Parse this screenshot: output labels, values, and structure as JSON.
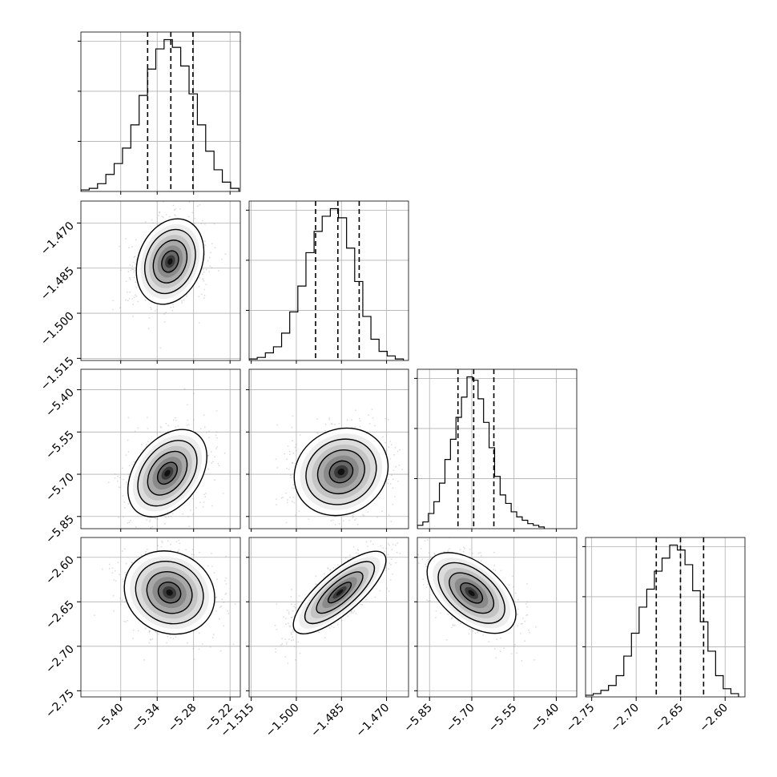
{
  "chart_data": {
    "type": "corner",
    "description_source": "posterior corner plot with 4 parameters",
    "grid": true,
    "parameters": [
      {
        "label": "",
        "ticks": [
          "−5.40",
          "−5.34",
          "−5.28",
          "−5.22"
        ],
        "tick_values": [
          -5.4,
          -5.34,
          -5.28,
          -5.22
        ],
        "range": [
          -5.4656,
          -5.2031
        ],
        "quantiles": [
          -5.3557,
          -5.3175,
          -5.2811
        ],
        "hist": {
          "bins": [
            -5.4656,
            -5.4519,
            -5.4382,
            -5.4245,
            -5.4108,
            -5.3971,
            -5.3834,
            -5.3697,
            -5.356,
            -5.3423,
            -5.3286,
            -5.3149,
            -5.3012,
            -5.2875,
            -5.2738,
            -5.2601,
            -5.2464,
            -5.2327,
            -5.219,
            -5.2053
          ],
          "counts": [
            0.01,
            0.02,
            0.05,
            0.11,
            0.18,
            0.28,
            0.43,
            0.62,
            0.79,
            0.92,
            0.98,
            0.93,
            0.81,
            0.63,
            0.43,
            0.26,
            0.14,
            0.06,
            0.02
          ]
        }
      },
      {
        "label": "",
        "ticks": [
          "−1.515",
          "−1.500",
          "−1.485",
          "−1.470"
        ],
        "tick_values": [
          -1.515,
          -1.5,
          -1.485,
          -1.47
        ],
        "range": [
          -1.5157,
          -1.4627
        ],
        "quantiles": [
          -1.4936,
          -1.4862,
          -1.4791
        ],
        "hist": {
          "bins": [
            -1.5157,
            -1.513,
            -1.5103,
            -1.5076,
            -1.5049,
            -1.5022,
            -1.4995,
            -1.4968,
            -1.4941,
            -1.4914,
            -1.4887,
            -1.486,
            -1.4833,
            -1.4806,
            -1.4779,
            -1.4752,
            -1.4725,
            -1.4698,
            -1.4671,
            -1.4644
          ],
          "counts": [
            0.01,
            0.02,
            0.05,
            0.09,
            0.18,
            0.32,
            0.49,
            0.71,
            0.85,
            0.95,
            1.0,
            0.94,
            0.74,
            0.52,
            0.29,
            0.14,
            0.06,
            0.03,
            0.01
          ]
        }
      },
      {
        "label": "",
        "ticks": [
          "−5.85",
          "−5.70",
          "−5.55",
          "−5.40"
        ],
        "tick_values": [
          -5.85,
          -5.7,
          -5.55,
          -5.4
        ],
        "range": [
          -5.8933,
          -5.3273
        ],
        "quantiles": [
          -5.749,
          -5.6932,
          -5.6216
        ],
        "hist": {
          "bins": [
            -5.8933,
            -5.8737,
            -5.8541,
            -5.8345,
            -5.8149,
            -5.7953,
            -5.7757,
            -5.7561,
            -5.7365,
            -5.7169,
            -5.6973,
            -5.6777,
            -5.6581,
            -5.6385,
            -5.6189,
            -5.5993,
            -5.5797,
            -5.5601,
            -5.5405,
            -5.5209,
            -5.5013,
            -5.4817,
            -5.4621,
            -5.4425
          ],
          "counts": [
            0.02,
            0.04,
            0.09,
            0.16,
            0.27,
            0.41,
            0.53,
            0.66,
            0.78,
            0.9,
            0.88,
            0.77,
            0.63,
            0.48,
            0.31,
            0.2,
            0.15,
            0.1,
            0.07,
            0.05,
            0.03,
            0.02,
            0.01
          ]
        }
      },
      {
        "label": "",
        "ticks": [
          "−2.75",
          "−2.70",
          "−2.65",
          "−2.60"
        ],
        "tick_values": [
          -2.75,
          -2.7,
          -2.65,
          -2.6
        ],
        "range": [
          -2.7569,
          -2.5777
        ],
        "quantiles": [
          -2.6774,
          -2.6502,
          -2.6242
        ],
        "hist": {
          "bins": [
            -2.7569,
            -2.7483,
            -2.7397,
            -2.7311,
            -2.7225,
            -2.7139,
            -2.7053,
            -2.6967,
            -2.6881,
            -2.6795,
            -2.6709,
            -2.6623,
            -2.6537,
            -2.6451,
            -2.6365,
            -2.6279,
            -2.6193,
            -2.6107,
            -2.6021,
            -2.5935,
            -2.5849
          ],
          "counts": [
            0.01,
            0.02,
            0.04,
            0.07,
            0.13,
            0.25,
            0.39,
            0.55,
            0.66,
            0.77,
            0.85,
            0.93,
            0.9,
            0.81,
            0.65,
            0.46,
            0.28,
            0.13,
            0.05,
            0.02
          ]
        }
      }
    ],
    "pairs": [
      {
        "x": 0,
        "y": 1,
        "center": [
          -5.3187,
          -1.4828
        ],
        "sigma": [
          0.0278,
          0.0071
        ],
        "rho": 0.22
      },
      {
        "x": 0,
        "y": 2,
        "center": [
          -5.3232,
          -5.6963
        ],
        "sigma": [
          0.0325,
          0.0775
        ],
        "rho": 0.38
      },
      {
        "x": 1,
        "y": 2,
        "center": [
          -1.4851,
          -5.6915
        ],
        "sigma": [
          0.0078,
          0.0776
        ],
        "rho": 0.12
      },
      {
        "x": 0,
        "y": 3,
        "center": [
          -5.3197,
          -2.6396
        ],
        "sigma": [
          0.0372,
          0.0234
        ],
        "rho": -0.12
      },
      {
        "x": 1,
        "y": 3,
        "center": [
          -1.4856,
          -2.6396
        ],
        "sigma": [
          0.0077,
          0.0232
        ],
        "rho": 0.78
      },
      {
        "x": 2,
        "y": 3,
        "center": [
          -5.701,
          -2.6401
        ],
        "sigma": [
          0.0788,
          0.0227
        ],
        "rho": -0.52
      }
    ],
    "contour_levels_sigma": [
      0.5,
      1.0,
      1.5,
      2.0
    ]
  }
}
